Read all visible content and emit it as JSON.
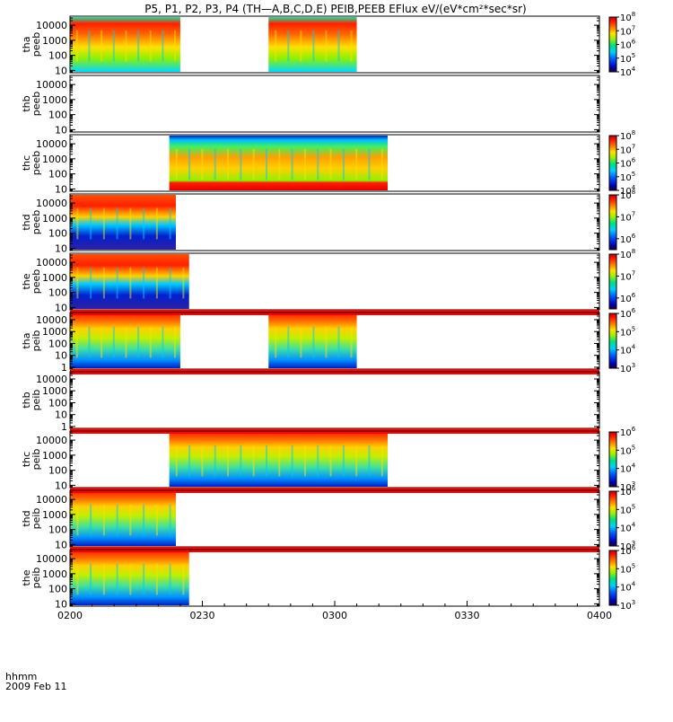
{
  "figure": {
    "title": "P5, P1, P2, P3, P4 (TH—A,B,C,D,E) PEIB,PEEB EFlux eV/(eV*cm²*sec*sr)",
    "time_label": "hhmm",
    "date_label": "2009 Feb 11"
  },
  "chart_data": {
    "type": "heatmap",
    "x_axis": {
      "unit": "hhmm",
      "range_minutes": [
        0,
        120
      ],
      "ticks": [
        {
          "minute": 0,
          "label": "0200"
        },
        {
          "minute": 30,
          "label": "0230"
        },
        {
          "minute": 60,
          "label": "0300"
        },
        {
          "minute": 90,
          "label": "0330"
        },
        {
          "minute": 120,
          "label": "0400"
        }
      ]
    },
    "y_scale": "log",
    "colormap": "rainbow",
    "panels": [
      {
        "probe": "tha",
        "product": "peeb",
        "ytick_labels": [
          "10",
          "100",
          "1000",
          "10000"
        ],
        "ylim": [
          7,
          40000
        ],
        "data_intervals": [
          [
            0,
            25
          ],
          [
            45,
            65
          ]
        ],
        "redbar": false,
        "colorbar": {
          "log_min": 4,
          "log_max": 8,
          "labels": [
            {
              "text": "10",
              "exp": "4",
              "log": 4
            },
            {
              "text": "10",
              "exp": "5",
              "log": 5
            },
            {
              "text": "10",
              "exp": "6",
              "log": 6
            },
            {
              "text": "10",
              "exp": "7",
              "log": 7
            },
            {
              "text": "10",
              "exp": "8",
              "log": 8
            }
          ]
        }
      },
      {
        "probe": "thb",
        "product": "peeb",
        "ytick_labels": [
          "10",
          "100",
          "1000",
          "10000"
        ],
        "ylim": [
          7,
          40000
        ],
        "data_intervals": [],
        "redbar": false,
        "colorbar": null
      },
      {
        "probe": "thc",
        "product": "peeb",
        "ytick_labels": [
          "10",
          "100",
          "1000",
          "10000"
        ],
        "ylim": [
          7,
          40000
        ],
        "data_intervals": [
          [
            22.5,
            72
          ]
        ],
        "redbar": false,
        "colorbar": {
          "log_min": 4,
          "log_max": 8,
          "labels": [
            {
              "text": "10",
              "exp": "4",
              "log": 4
            },
            {
              "text": "10",
              "exp": "5",
              "log": 5
            },
            {
              "text": "10",
              "exp": "6",
              "log": 6
            },
            {
              "text": "10",
              "exp": "7",
              "log": 7
            },
            {
              "text": "10",
              "exp": "8",
              "log": 8
            }
          ]
        }
      },
      {
        "probe": "thd",
        "product": "peeb",
        "ytick_labels": [
          "10",
          "100",
          "1000",
          "10000"
        ],
        "ylim": [
          7,
          40000
        ],
        "data_intervals": [
          [
            0,
            24
          ]
        ],
        "redbar": false,
        "colorbar": {
          "log_min": 5.5,
          "log_max": 8,
          "labels": [
            {
              "text": "10",
              "exp": "6",
              "log": 6
            },
            {
              "text": "10",
              "exp": "7",
              "log": 7
            },
            {
              "text": "10",
              "exp": "8",
              "log": 8
            }
          ]
        }
      },
      {
        "probe": "the",
        "product": "peeb",
        "ytick_labels": [
          "10",
          "100",
          "1000",
          "10000"
        ],
        "ylim": [
          7,
          40000
        ],
        "data_intervals": [
          [
            0,
            27
          ]
        ],
        "redbar": false,
        "colorbar": {
          "log_min": 5.5,
          "log_max": 8,
          "labels": [
            {
              "text": "10",
              "exp": "6",
              "log": 6
            },
            {
              "text": "10",
              "exp": "7",
              "log": 7
            },
            {
              "text": "10",
              "exp": "8",
              "log": 8
            }
          ]
        }
      },
      {
        "probe": "tha",
        "product": "peib",
        "ytick_labels": [
          "1",
          "10",
          "100",
          "1000",
          "10000"
        ],
        "ylim": [
          0.7,
          40000
        ],
        "data_intervals": [
          [
            0,
            25
          ],
          [
            45,
            65
          ]
        ],
        "redbar": true,
        "colorbar": {
          "log_min": 3,
          "log_max": 6,
          "labels": [
            {
              "text": "10",
              "exp": "3",
              "log": 3
            },
            {
              "text": "10",
              "exp": "4",
              "log": 4
            },
            {
              "text": "10",
              "exp": "5",
              "log": 5
            },
            {
              "text": "10",
              "exp": "6",
              "log": 6
            }
          ]
        }
      },
      {
        "probe": "thb",
        "product": "peib",
        "ytick_labels": [
          "1",
          "10",
          "100",
          "1000",
          "10000"
        ],
        "ylim": [
          0.7,
          40000
        ],
        "data_intervals": [],
        "redbar": true,
        "colorbar": null
      },
      {
        "probe": "thc",
        "product": "peib",
        "ytick_labels": [
          "10",
          "100",
          "1000",
          "10000"
        ],
        "ylim": [
          7,
          40000
        ],
        "data_intervals": [
          [
            22.5,
            72
          ]
        ],
        "redbar": true,
        "colorbar": {
          "log_min": 3,
          "log_max": 6,
          "labels": [
            {
              "text": "10",
              "exp": "3",
              "log": 3
            },
            {
              "text": "10",
              "exp": "4",
              "log": 4
            },
            {
              "text": "10",
              "exp": "5",
              "log": 5
            },
            {
              "text": "10",
              "exp": "6",
              "log": 6
            }
          ]
        }
      },
      {
        "probe": "thd",
        "product": "peib",
        "ytick_labels": [
          "10",
          "100",
          "1000",
          "10000"
        ],
        "ylim": [
          7,
          40000
        ],
        "data_intervals": [
          [
            0,
            24
          ]
        ],
        "redbar": true,
        "colorbar": {
          "log_min": 3,
          "log_max": 6,
          "labels": [
            {
              "text": "10",
              "exp": "3",
              "log": 3
            },
            {
              "text": "10",
              "exp": "4",
              "log": 4
            },
            {
              "text": "10",
              "exp": "5",
              "log": 5
            },
            {
              "text": "10",
              "exp": "6",
              "log": 6
            }
          ]
        }
      },
      {
        "probe": "the",
        "product": "peib",
        "ytick_labels": [
          "10",
          "100",
          "1000",
          "10000"
        ],
        "ylim": [
          7,
          40000
        ],
        "data_intervals": [
          [
            0,
            27
          ]
        ],
        "redbar": true,
        "colorbar": {
          "log_min": 3,
          "log_max": 6,
          "labels": [
            {
              "text": "10",
              "exp": "3",
              "log": 3
            },
            {
              "text": "10",
              "exp": "4",
              "log": 4
            },
            {
              "text": "10",
              "exp": "5",
              "log": 5
            },
            {
              "text": "10",
              "exp": "6",
              "log": 6
            }
          ]
        }
      }
    ]
  }
}
